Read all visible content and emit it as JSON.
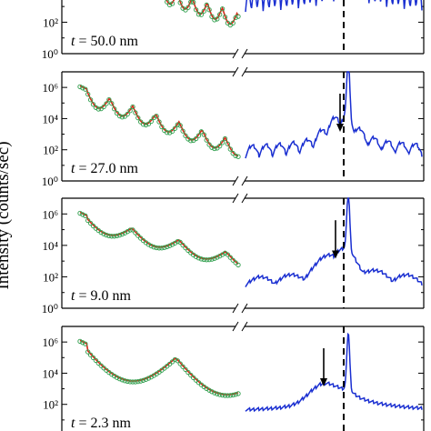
{
  "chart_data": {
    "type": "line",
    "ylabel": "Intensity (counts/sec)",
    "yscale": "log",
    "ylim": [
      1,
      10000000
    ],
    "yticks": [
      1,
      100,
      10000,
      1000000
    ],
    "ytick_labels": [
      "10⁰",
      "10²",
      "10⁴",
      "10⁶"
    ],
    "axis_break": true,
    "peak_marker": "dashed vertical line",
    "series_styles": {
      "measured": {
        "marker": "open-circle",
        "color": "#2e9e4c"
      },
      "fit": {
        "line": "solid",
        "color": "#d62a1a"
      },
      "high_angle_scan": {
        "line": "solid",
        "color": "#1a2fd1"
      }
    },
    "panels": [
      {
        "label": "t = 50.0 nm",
        "t_label_prefix": "t",
        "t_label_value": " = 50.0 nm",
        "partial": true,
        "arrow": false
      },
      {
        "label": "t = 27.0 nm",
        "t_label_prefix": "t",
        "t_label_value": " = 27.0 nm",
        "partial": false,
        "arrow": true
      },
      {
        "label": "t = 9.0 nm",
        "t_label_prefix": "t",
        "t_label_value": " = 9.0 nm",
        "partial": false,
        "arrow": true
      },
      {
        "label": "t = 2.3 nm",
        "t_label_prefix": "t",
        "t_label_value": " = 2.3 nm",
        "partial": false,
        "arrow": true
      }
    ]
  }
}
